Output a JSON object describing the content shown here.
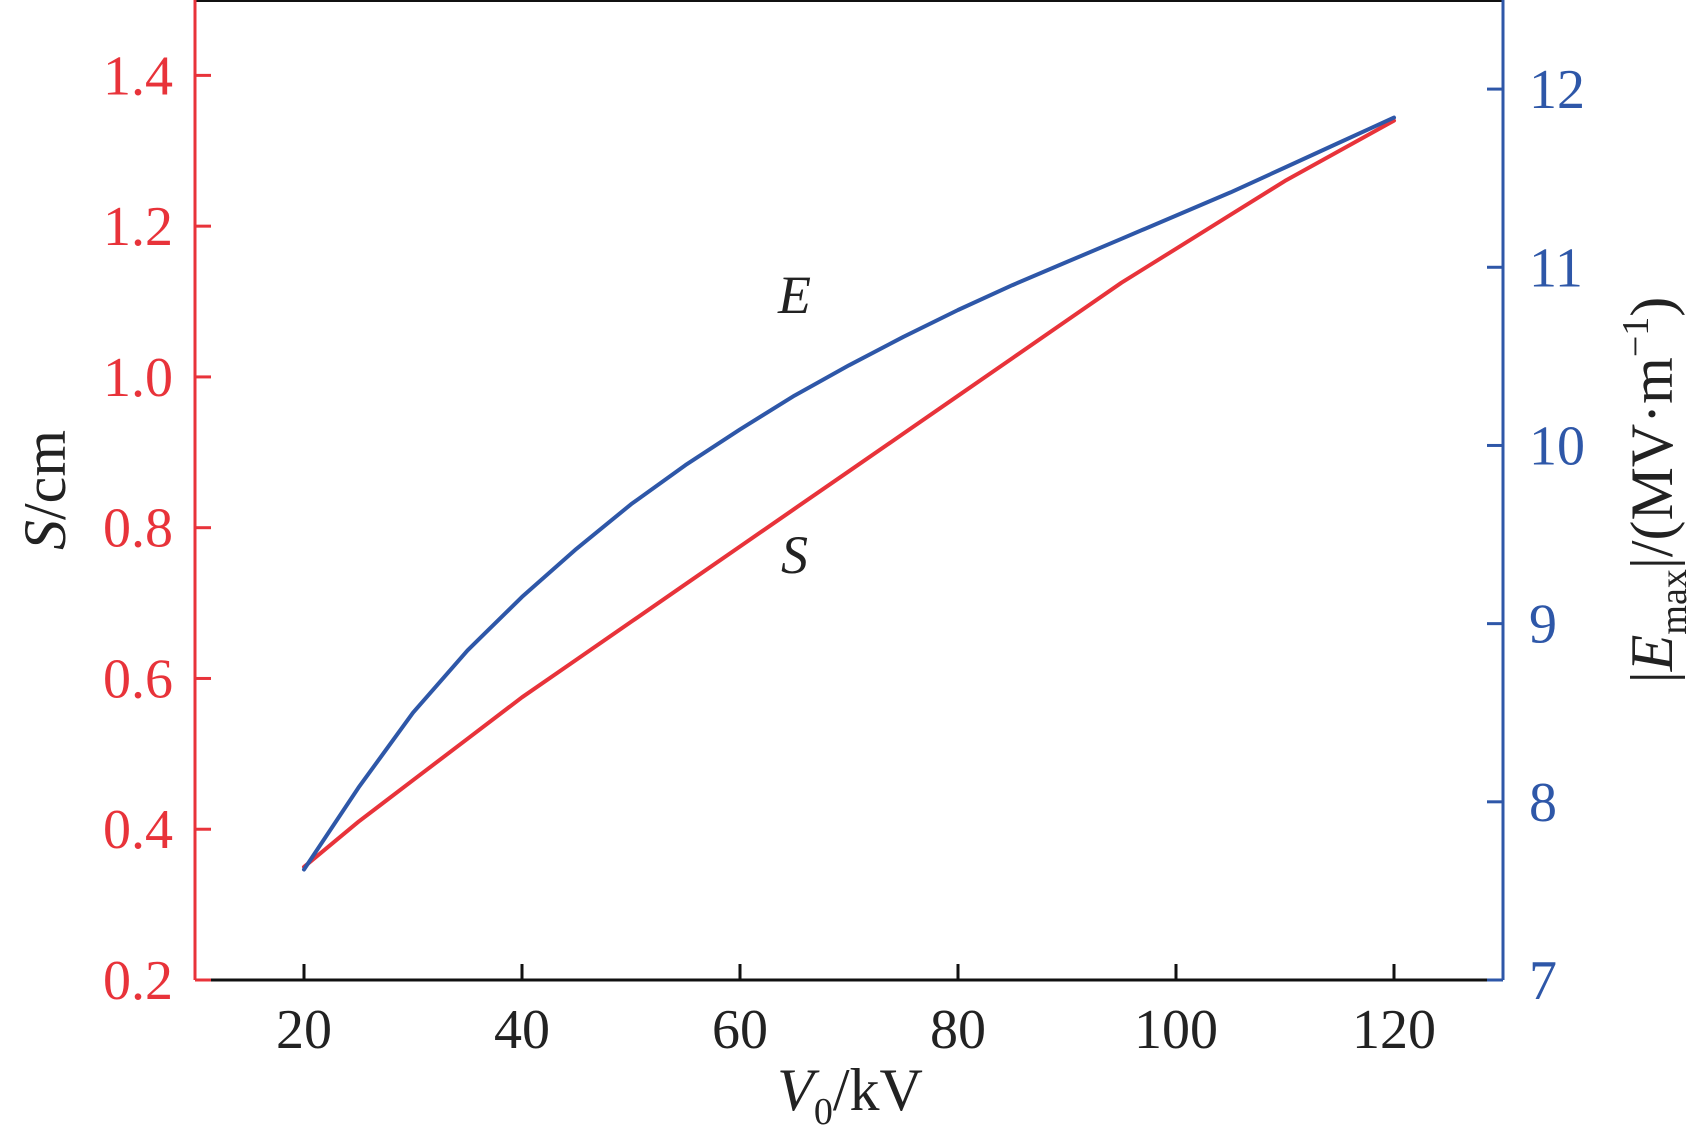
{
  "chart_data": {
    "type": "line",
    "title": "",
    "xlabel": {
      "symbol": "V",
      "subscript": "0",
      "unit": "/kV"
    },
    "ylabel_left": {
      "symbol": "S",
      "unit": "/cm"
    },
    "ylabel_right": {
      "open": "|",
      "symbol": "E",
      "subscript": "max",
      "close": "|/(MV·m",
      "superscript": "−1",
      "tail": ")"
    },
    "xlim": [
      10,
      130
    ],
    "ylim_left": [
      0.2,
      1.5
    ],
    "ylim_right": [
      7,
      12.5
    ],
    "x_ticks": [
      20,
      40,
      60,
      80,
      100,
      120
    ],
    "x_tick_labels": [
      "20",
      "40",
      "60",
      "80",
      "100",
      "120"
    ],
    "y_left_ticks": [
      0.2,
      0.4,
      0.6,
      0.8,
      1.0,
      1.2,
      1.4
    ],
    "y_left_tick_labels": [
      "0.2",
      "0.4",
      "0.6",
      "0.8",
      "1.0",
      "1.2",
      "1.4"
    ],
    "y_right_ticks": [
      7,
      8,
      9,
      10,
      11,
      12
    ],
    "y_right_tick_labels": [
      "7",
      "8",
      "9",
      "10",
      "11",
      "12"
    ],
    "grid": false,
    "series": [
      {
        "name": "S",
        "axis": "left",
        "color": "#e8333a",
        "x": [
          20,
          25,
          30,
          35,
          40,
          45,
          50,
          55,
          60,
          65,
          70,
          75,
          80,
          85,
          90,
          95,
          100,
          105,
          110,
          115,
          120
        ],
        "y": [
          0.35,
          0.41,
          0.465,
          0.52,
          0.575,
          0.625,
          0.675,
          0.725,
          0.775,
          0.825,
          0.875,
          0.925,
          0.975,
          1.025,
          1.075,
          1.125,
          1.17,
          1.215,
          1.26,
          1.3,
          1.34
        ]
      },
      {
        "name": "E",
        "axis": "right",
        "color": "#2e57a8",
        "x": [
          20,
          25,
          30,
          35,
          40,
          45,
          50,
          55,
          60,
          65,
          70,
          75,
          80,
          85,
          90,
          95,
          100,
          105,
          110,
          115,
          120
        ],
        "y": [
          7.62,
          8.08,
          8.5,
          8.85,
          9.15,
          9.42,
          9.67,
          9.89,
          10.09,
          10.28,
          10.45,
          10.61,
          10.76,
          10.9,
          11.03,
          11.16,
          11.29,
          11.42,
          11.56,
          11.7,
          11.84
        ]
      }
    ],
    "annotations": [
      {
        "text": "E",
        "x": 65,
        "y_left": 1.085
      },
      {
        "text": "S",
        "x": 65,
        "y_left": 0.74
      }
    ]
  }
}
